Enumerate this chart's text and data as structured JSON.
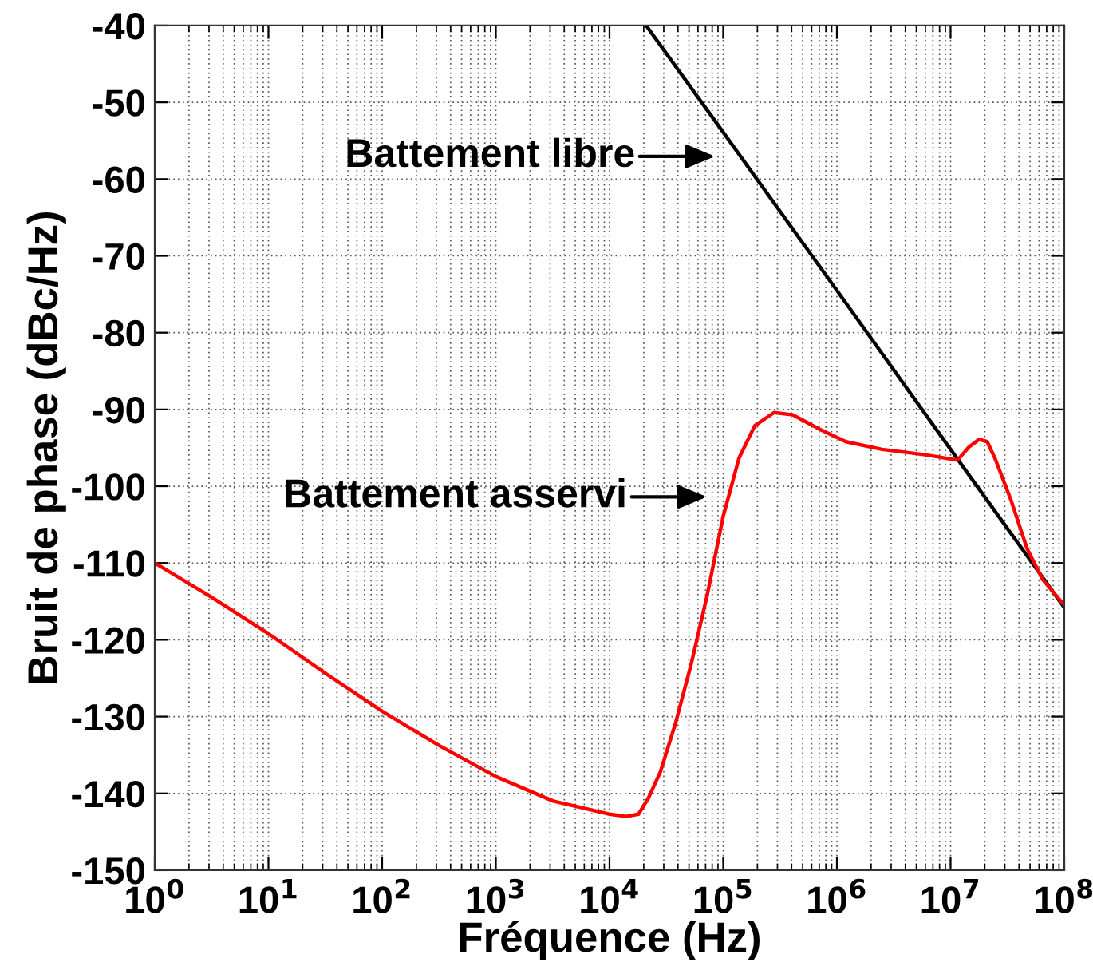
{
  "chart_data": {
    "type": "line",
    "xlabel": "Fréquence (Hz)",
    "ylabel": "Bruit de phase (dBc/Hz)",
    "log": "x",
    "xlim": [
      1,
      100000000
    ],
    "ylim": [
      -150,
      -40
    ],
    "xticks": [
      {
        "value": 1,
        "label": "10$^{0}$"
      },
      {
        "value": 10,
        "label": "10$^{1}$"
      },
      {
        "value": 100,
        "label": "10$^{2}$"
      },
      {
        "value": 1000,
        "label": "10$^{3}$"
      },
      {
        "value": 10000,
        "label": "10$^{4}$"
      },
      {
        "value": 100000,
        "label": "10$^{5}$"
      },
      {
        "value": 1000000,
        "label": "10$^{6}$"
      },
      {
        "value": 10000000,
        "label": "10$^{7}$"
      },
      {
        "value": 100000000,
        "label": "10$^{8}$"
      }
    ],
    "yticks": [
      -150,
      -140,
      -130,
      -120,
      -110,
      -100,
      -90,
      -80,
      -70,
      -60,
      -50,
      -40
    ],
    "grid": true,
    "series": [
      {
        "color": "#000000",
        "x": [
          21000,
          100000,
          1000000,
          10000000,
          100000000
        ],
        "values": [
          -40,
          -53.9,
          -74.5,
          -95.2,
          -115.8
        ]
      },
      {
        "color": "#ff0000",
        "x": [
          1,
          3.2,
          10,
          32,
          100,
          320,
          1000,
          3200,
          10000,
          14000,
          18000,
          22000,
          28000,
          38000,
          52000,
          72000,
          100000,
          138000,
          190000,
          280000,
          410000,
          690000,
          1200000,
          2500000,
          6000000,
          11500000,
          14500000,
          17800000,
          21000000,
          24500000,
          34000000,
          47000000,
          65000000,
          100000000
        ],
        "values": [
          -110,
          -114.5,
          -119.2,
          -124.4,
          -129.3,
          -133.8,
          -137.8,
          -141,
          -142.7,
          -143,
          -142.7,
          -140.6,
          -137.2,
          -130.9,
          -123.3,
          -114.3,
          -103.9,
          -96.3,
          -92.1,
          -90.4,
          -90.7,
          -92.5,
          -94.2,
          -95.2,
          -95.9,
          -96.6,
          -94.9,
          -93.9,
          -94.2,
          -96.3,
          -101.8,
          -108.1,
          -112.2,
          -115.5
        ]
      }
    ],
    "annotations": [
      "Battement libre",
      "Battement asservi"
    ]
  }
}
